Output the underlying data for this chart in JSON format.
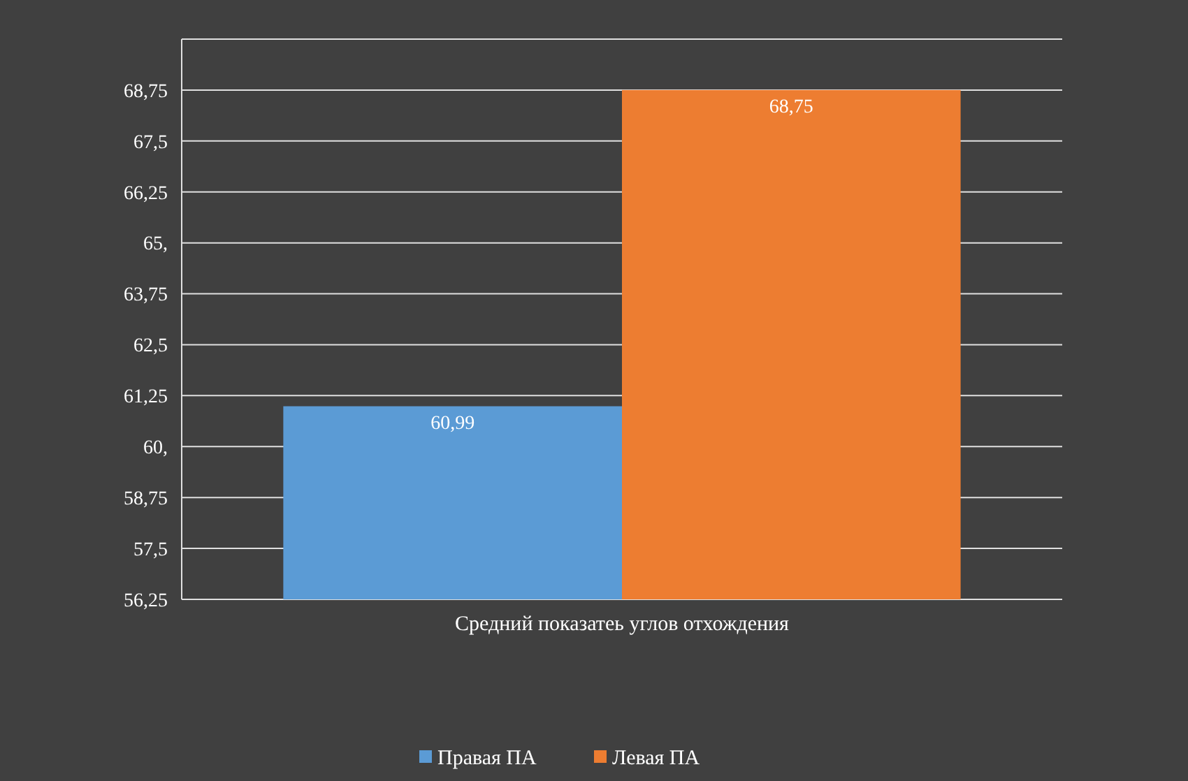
{
  "chart_data": {
    "type": "bar",
    "categories": [
      "Средний показатеь углов отхождения"
    ],
    "series": [
      {
        "name": "Правая ПА",
        "color": "#5b9bd5",
        "values": [
          60.99
        ],
        "value_labels": [
          "60,99"
        ]
      },
      {
        "name": "Левая ПА",
        "color": "#ed7d31",
        "values": [
          68.75
        ],
        "value_labels": [
          "68,75"
        ]
      }
    ],
    "ylim": [
      56.25,
      70
    ],
    "yticks": [
      {
        "value": 56.25,
        "label": "56,25"
      },
      {
        "value": 57.5,
        "label": "57,5"
      },
      {
        "value": 58.75,
        "label": "58,75"
      },
      {
        "value": 60,
        "label": "60,"
      },
      {
        "value": 61.25,
        "label": "61,25"
      },
      {
        "value": 62.5,
        "label": "62,5"
      },
      {
        "value": 63.75,
        "label": "63,75"
      },
      {
        "value": 65,
        "label": "65,"
      },
      {
        "value": 66.25,
        "label": "66,25"
      },
      {
        "value": 67.5,
        "label": "67,5"
      },
      {
        "value": 68.75,
        "label": "68,75"
      },
      {
        "value": 70,
        "label": null
      }
    ],
    "grid": "y",
    "legend": "bottom"
  }
}
